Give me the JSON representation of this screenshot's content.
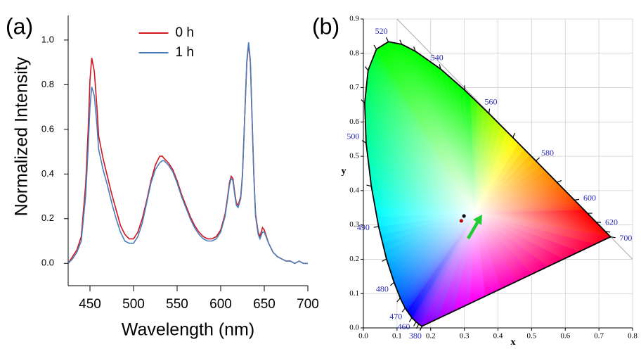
{
  "chart_data": [
    {
      "type": "line",
      "panel_label": "(a)",
      "xlabel": "Wavelength (nm)",
      "ylabel": "Normalized Intensity",
      "x": [
        425,
        430,
        435,
        440,
        445,
        448,
        450,
        452,
        455,
        458,
        460,
        465,
        470,
        475,
        480,
        485,
        490,
        495,
        500,
        505,
        510,
        515,
        520,
        525,
        530,
        533,
        535,
        540,
        545,
        550,
        555,
        560,
        565,
        570,
        575,
        580,
        585,
        590,
        595,
        600,
        605,
        608,
        610,
        612,
        614,
        616,
        618,
        620,
        623,
        625,
        628,
        630,
        632,
        634,
        636,
        638,
        640,
        643,
        645,
        648,
        650,
        655,
        660,
        665,
        670,
        675,
        680,
        685,
        690,
        695,
        700
      ],
      "series": [
        {
          "name": "0 h",
          "color": "#d0161e",
          "values": [
            0.0,
            0.03,
            0.06,
            0.12,
            0.35,
            0.6,
            0.82,
            0.92,
            0.86,
            0.7,
            0.57,
            0.47,
            0.39,
            0.31,
            0.24,
            0.17,
            0.13,
            0.11,
            0.11,
            0.14,
            0.2,
            0.28,
            0.37,
            0.44,
            0.48,
            0.48,
            0.47,
            0.45,
            0.42,
            0.37,
            0.31,
            0.26,
            0.21,
            0.17,
            0.14,
            0.12,
            0.11,
            0.11,
            0.12,
            0.15,
            0.22,
            0.3,
            0.36,
            0.39,
            0.38,
            0.32,
            0.27,
            0.26,
            0.3,
            0.4,
            0.7,
            0.9,
            0.98,
            0.9,
            0.65,
            0.4,
            0.22,
            0.14,
            0.12,
            0.16,
            0.15,
            0.09,
            0.05,
            0.03,
            0.02,
            0.01,
            0.01,
            0.0,
            0.01,
            0.0,
            0.0
          ]
        },
        {
          "name": "1 h",
          "color": "#4a7ebb",
          "values": [
            0.0,
            0.02,
            0.05,
            0.1,
            0.3,
            0.52,
            0.7,
            0.79,
            0.75,
            0.62,
            0.51,
            0.42,
            0.35,
            0.27,
            0.2,
            0.14,
            0.1,
            0.09,
            0.09,
            0.12,
            0.18,
            0.27,
            0.36,
            0.42,
            0.45,
            0.46,
            0.46,
            0.44,
            0.41,
            0.36,
            0.3,
            0.25,
            0.2,
            0.16,
            0.13,
            0.11,
            0.1,
            0.1,
            0.11,
            0.14,
            0.21,
            0.29,
            0.35,
            0.38,
            0.37,
            0.31,
            0.26,
            0.25,
            0.29,
            0.39,
            0.7,
            0.91,
            0.99,
            0.91,
            0.66,
            0.4,
            0.21,
            0.13,
            0.11,
            0.14,
            0.14,
            0.09,
            0.05,
            0.03,
            0.02,
            0.01,
            0.01,
            0.0,
            0.01,
            0.0,
            0.0
          ]
        }
      ],
      "xlim": [
        425,
        700
      ],
      "xticks": [
        450,
        500,
        550,
        600,
        650,
        700
      ],
      "ylim": [
        -0.1,
        1.11
      ],
      "yticks": [
        {
          "value": 0,
          "label": "0.0"
        },
        0.2,
        0.4,
        0.6,
        0.8,
        {
          "value": 1,
          "label": "1.0"
        }
      ],
      "legend": "upper center"
    },
    {
      "type": "scatter",
      "panel_label": "(b)",
      "xlabel": "x",
      "ylabel": "y",
      "x": [
        0.291,
        0.299
      ],
      "values": [
        0.312,
        0.326
      ],
      "colors": [
        "#c00000",
        "#111111"
      ],
      "xlim": [
        0,
        0.8
      ],
      "xticks": [
        {
          "value": 0,
          "label": "0.0"
        },
        0.1,
        0.2,
        0.3,
        0.4,
        0.5,
        0.6,
        0.7,
        0.8
      ],
      "ylim": [
        0,
        0.9
      ],
      "yticks": [
        {
          "value": 0,
          "label": "0.0"
        },
        0.1,
        0.2,
        0.3,
        0.4,
        0.5,
        0.6,
        0.7,
        0.8,
        0.9
      ],
      "grid": true,
      "locus_wavelengths": [
        380,
        440,
        450,
        460,
        470,
        475,
        480,
        485,
        490,
        495,
        500,
        505,
        510,
        515,
        520,
        525,
        530,
        540,
        550,
        560,
        570,
        580,
        590,
        600,
        610,
        620,
        640,
        700
      ],
      "locus_x": [
        0.1741,
        0.1644,
        0.1566,
        0.144,
        0.1241,
        0.1096,
        0.0913,
        0.0687,
        0.0454,
        0.0235,
        0.0082,
        0.0039,
        0.0139,
        0.0389,
        0.0743,
        0.1142,
        0.1547,
        0.2296,
        0.3016,
        0.3731,
        0.4441,
        0.5125,
        0.5752,
        0.627,
        0.6658,
        0.6915,
        0.719,
        0.7347
      ],
      "locus_y": [
        0.005,
        0.0109,
        0.0177,
        0.0297,
        0.0578,
        0.0868,
        0.1327,
        0.2007,
        0.295,
        0.4127,
        0.5384,
        0.6548,
        0.7502,
        0.812,
        0.8338,
        0.8262,
        0.8059,
        0.7543,
        0.6923,
        0.6245,
        0.5547,
        0.4866,
        0.4242,
        0.3725,
        0.334,
        0.3083,
        0.2809,
        0.2653
      ],
      "wavelength_labels": [
        380,
        460,
        470,
        480,
        490,
        500,
        520,
        540,
        560,
        580,
        600,
        620,
        700
      ]
    }
  ]
}
